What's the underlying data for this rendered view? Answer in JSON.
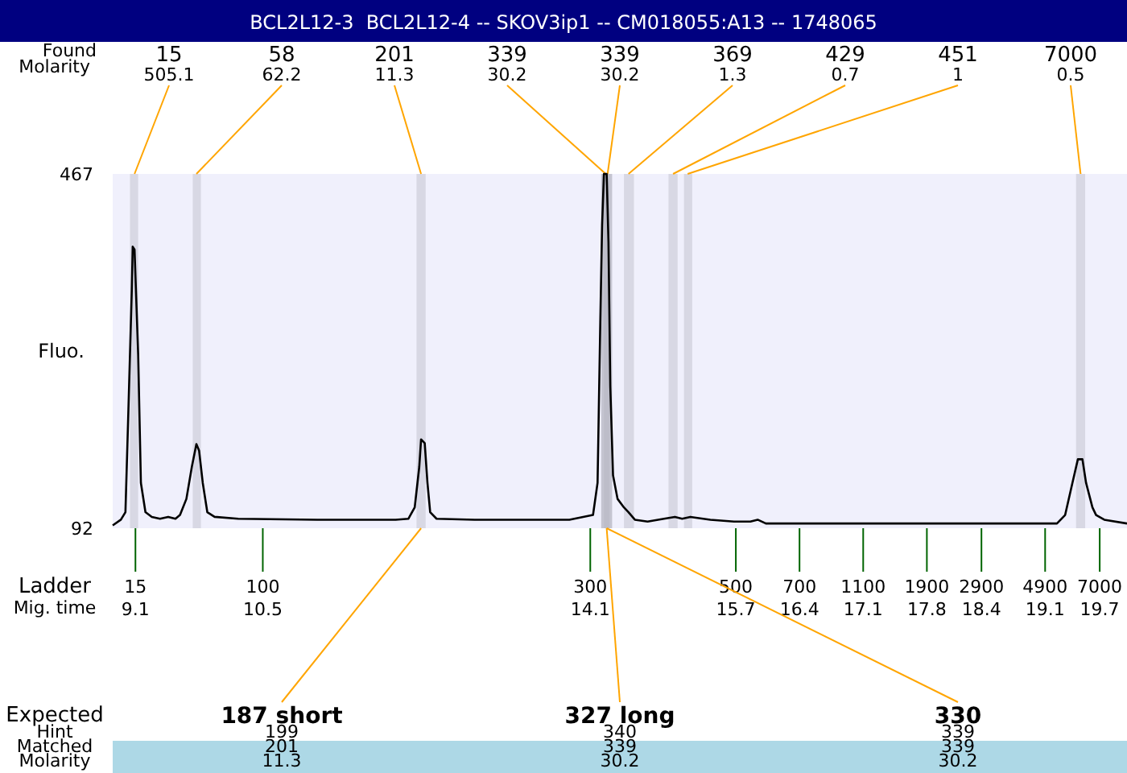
{
  "chart_data": {
    "type": "line",
    "title": "BCL2L12-3  BCL2L12-4 -- SKOV3ip1 -- CM018055:A13 -- 1748065",
    "ylabel": "Fluo.",
    "xlabel": "Mig. time",
    "xlim": [
      8.85,
      20.0
    ],
    "ylim": [
      92,
      467
    ],
    "yticks": [
      92,
      467
    ],
    "xticks": [
      9.1,
      10.5,
      14.1,
      15.7,
      16.4,
      17.1,
      17.8,
      18.4,
      19.1,
      19.7
    ],
    "x": [
      8.85,
      8.94,
      8.99,
      9.02,
      9.06,
      9.07,
      9.09,
      9.13,
      9.16,
      9.21,
      9.28,
      9.37,
      9.46,
      9.54,
      9.59,
      9.66,
      9.72,
      9.77,
      9.8,
      9.84,
      9.89,
      9.97,
      10.23,
      11.1,
      11.96,
      12.1,
      12.17,
      12.22,
      12.24,
      12.28,
      12.31,
      12.34,
      12.41,
      12.83,
      13.87,
      14.13,
      14.18,
      14.21,
      14.23,
      14.25,
      14.28,
      14.3,
      14.32,
      14.35,
      14.4,
      14.47,
      14.52,
      14.59,
      14.73,
      14.91,
      15.03,
      15.11,
      15.2,
      15.42,
      15.68,
      15.86,
      15.94,
      16.03,
      16.29,
      16.98,
      17.33,
      18.02,
      19.23,
      19.32,
      19.4,
      19.46,
      19.51,
      19.55,
      19.62,
      19.66,
      19.75,
      20.0
    ],
    "series": [
      {
        "color": "#000000",
        "values": [
          95,
          101,
          109,
          208,
          344,
          390,
          387,
          276,
          140,
          109,
          104,
          102,
          104,
          102,
          106,
          123,
          157,
          181,
          174,
          140,
          109,
          104,
          102,
          101,
          101,
          102,
          114,
          157,
          186,
          182,
          140,
          109,
          102,
          101,
          101,
          106,
          140,
          310,
          413,
          467,
          467,
          395,
          242,
          148,
          123,
          114,
          109,
          101,
          99,
          102,
          104,
          102,
          104,
          101,
          99,
          99,
          101,
          97,
          97,
          97,
          97,
          97,
          97,
          106,
          140,
          165,
          165,
          140,
          114,
          106,
          101,
          97
        ]
      }
    ],
    "bands": [
      {
        "axis": "x",
        "from": 9.04,
        "to": 9.13,
        "label": "15",
        "color": "#d3d3df"
      },
      {
        "axis": "x",
        "from": 9.73,
        "to": 9.82,
        "label": "58",
        "color": "#d3d3df"
      },
      {
        "axis": "x",
        "from": 12.19,
        "to": 12.29,
        "label": "201",
        "color": "#d3d3df"
      },
      {
        "axis": "x",
        "from": 14.22,
        "to": 14.31,
        "label": "339",
        "color": "#bcbcc8"
      },
      {
        "axis": "x",
        "from": 14.25,
        "to": 14.34,
        "label": "339",
        "color": "#bcbcc8"
      },
      {
        "axis": "x",
        "from": 14.47,
        "to": 14.58,
        "label": "369",
        "color": "#d3d3df"
      },
      {
        "axis": "x",
        "from": 14.96,
        "to": 15.06,
        "label": "429",
        "color": "#d3d3df"
      },
      {
        "axis": "x",
        "from": 15.13,
        "to": 15.22,
        "label": "451",
        "color": "#d3d3df"
      },
      {
        "axis": "x",
        "from": 19.44,
        "to": 19.54,
        "label": "7000",
        "color": "#d3d3df"
      }
    ],
    "annotations": [
      "Found",
      "Molarity",
      "Ladder",
      "Expected",
      "Hint",
      "Matched",
      "Molarity",
      "199",
      "201",
      "11.3",
      "340",
      "339",
      "30.2",
      "339",
      "339",
      "30.2",
      "15",
      "100",
      "300",
      "500",
      "700",
      "1100",
      "1900",
      "2900",
      "4900",
      "7000",
      {
        "text": "505.1",
        "x": 9.09,
        "y": 467
      },
      {
        "text": "62.2",
        "x": 9.77,
        "y": 467
      },
      {
        "text": "11.3",
        "x": 12.24,
        "y": 467
      },
      {
        "text": "30.2",
        "x": 14.27,
        "y": 467
      },
      {
        "text": "30.2",
        "x": 14.29,
        "y": 467
      },
      {
        "text": "1.3",
        "x": 14.52,
        "y": 467
      },
      {
        "text": "0.7",
        "x": 15.01,
        "y": 467
      },
      {
        "text": "1",
        "x": 15.17,
        "y": 467
      },
      {
        "text": "0.5",
        "x": 19.49,
        "y": 467
      },
      {
        "text": "187 short",
        "x": 12.24,
        "y": 92
      },
      {
        "text": "327 long",
        "x": 14.28,
        "y": 92
      },
      {
        "text": "330",
        "x": 14.28,
        "y": 92
      }
    ]
  }
}
